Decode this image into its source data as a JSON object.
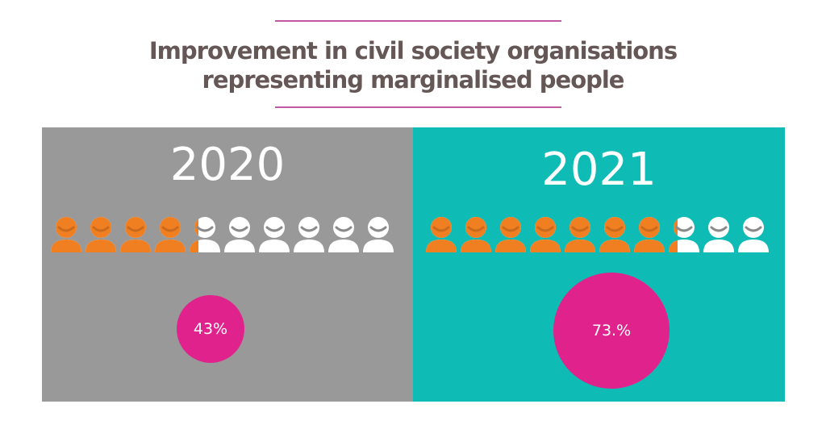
{
  "chart_data": {
    "type": "pictogram",
    "title_lines": [
      "Improvement in civil society organisations",
      "representing marginalised people"
    ],
    "icons_per_panel": 10,
    "colors": {
      "filled": "#f07f22",
      "empty": "#ffffff",
      "panel_2020": "#999999",
      "panel_2021": "#0fbcb5",
      "badge": "#e0238c",
      "title": "#655755",
      "rule": "#c25aa3"
    },
    "panels": [
      {
        "year": "2020",
        "value": 43,
        "label": "43%"
      },
      {
        "year": "2021",
        "value": 73,
        "label": "73.%"
      }
    ]
  }
}
